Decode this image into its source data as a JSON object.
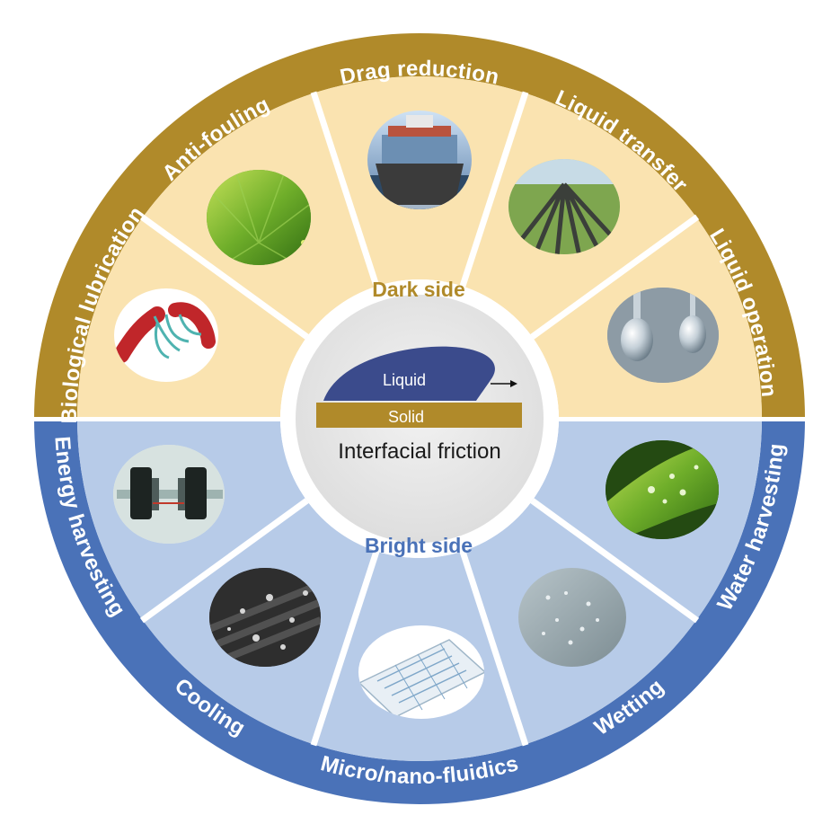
{
  "center": {
    "liquid_label": "Liquid",
    "solid_label": "Solid",
    "caption": "Interfacial friction"
  },
  "dark_side": {
    "label": "Dark side",
    "color": "#b08a2a",
    "fill": "#fae3b0",
    "applications": [
      {
        "label": "Biological lubrication",
        "picture": "blood-vessel-illustration"
      },
      {
        "label": "Anti-fouling",
        "picture": "lotus-leaf-photo"
      },
      {
        "label": "Drag reduction",
        "picture": "container-ship-photo"
      },
      {
        "label": "Liquid transfer",
        "picture": "pipeline-photo"
      },
      {
        "label": "Liquid operation",
        "picture": "droplets-photo"
      }
    ]
  },
  "bright_side": {
    "label": "Bright side",
    "color": "#4a72b8",
    "fill": "#b7cbe8",
    "applications": [
      {
        "label": "Energy harvesting",
        "picture": "generator-device-photo"
      },
      {
        "label": "Cooling",
        "picture": "condensation-surface-photo"
      },
      {
        "label": "Micro/nano-fluidics",
        "picture": "microfluidic-chip-illustration"
      },
      {
        "label": "Wetting",
        "picture": "wet-glass-photo"
      },
      {
        "label": "Water harvesting",
        "picture": "leaf-dew-photo"
      }
    ]
  }
}
